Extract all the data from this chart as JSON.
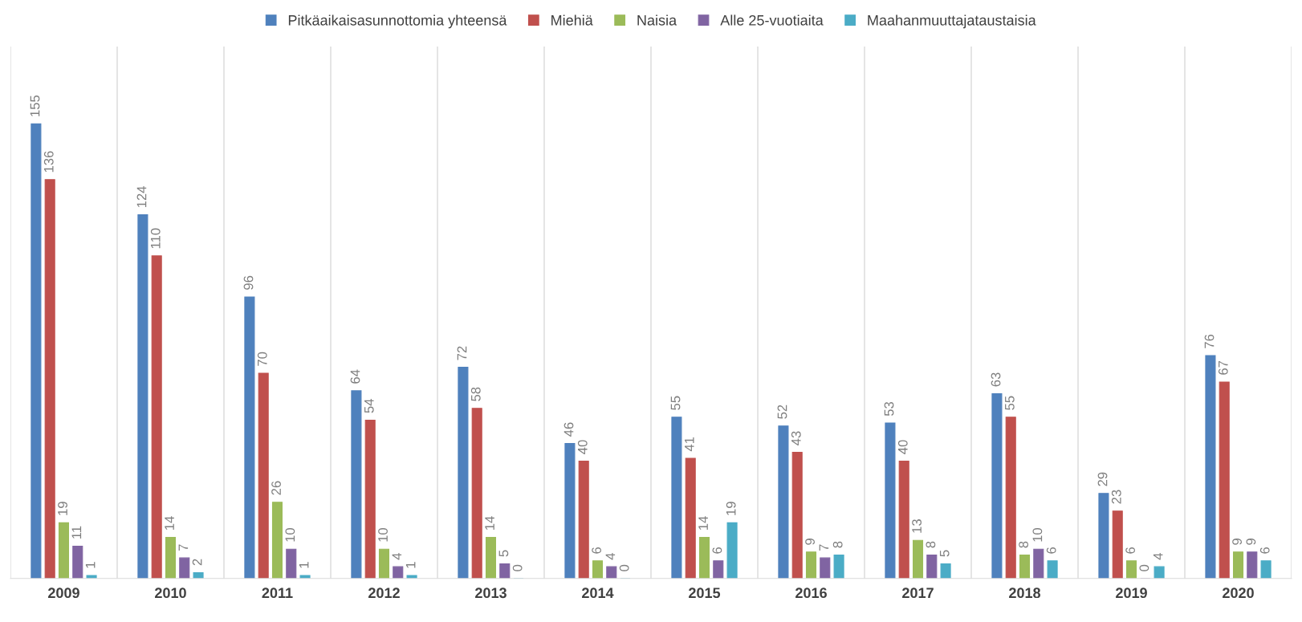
{
  "chart_data": {
    "type": "bar",
    "categories": [
      "2009",
      "2010",
      "2011",
      "2012",
      "2013",
      "2014",
      "2015",
      "2016",
      "2017",
      "2018",
      "2019",
      "2020"
    ],
    "series": [
      {
        "name": "Pitkäaikaisasunnottomia yhteensä",
        "color": "#4f81bd",
        "values": [
          155,
          124,
          96,
          64,
          72,
          46,
          55,
          52,
          53,
          63,
          29,
          76
        ]
      },
      {
        "name": "Miehiä",
        "color": "#c0504d",
        "values": [
          136,
          110,
          70,
          54,
          58,
          40,
          41,
          43,
          40,
          55,
          23,
          67
        ]
      },
      {
        "name": "Naisia",
        "color": "#9bbb59",
        "values": [
          19,
          14,
          26,
          10,
          14,
          6,
          14,
          9,
          13,
          8,
          6,
          9
        ]
      },
      {
        "name": "Alle 25-vuotiaita",
        "color": "#8064a2",
        "values": [
          11,
          7,
          10,
          4,
          5,
          4,
          6,
          7,
          8,
          10,
          0,
          9
        ]
      },
      {
        "name": "Maahanmuuttajataustaisia",
        "color": "#4bacc6",
        "values": [
          1,
          2,
          1,
          1,
          0,
          0,
          19,
          8,
          5,
          6,
          4,
          6
        ]
      }
    ],
    "data_labels": true,
    "grid": "x",
    "legend": "top"
  }
}
